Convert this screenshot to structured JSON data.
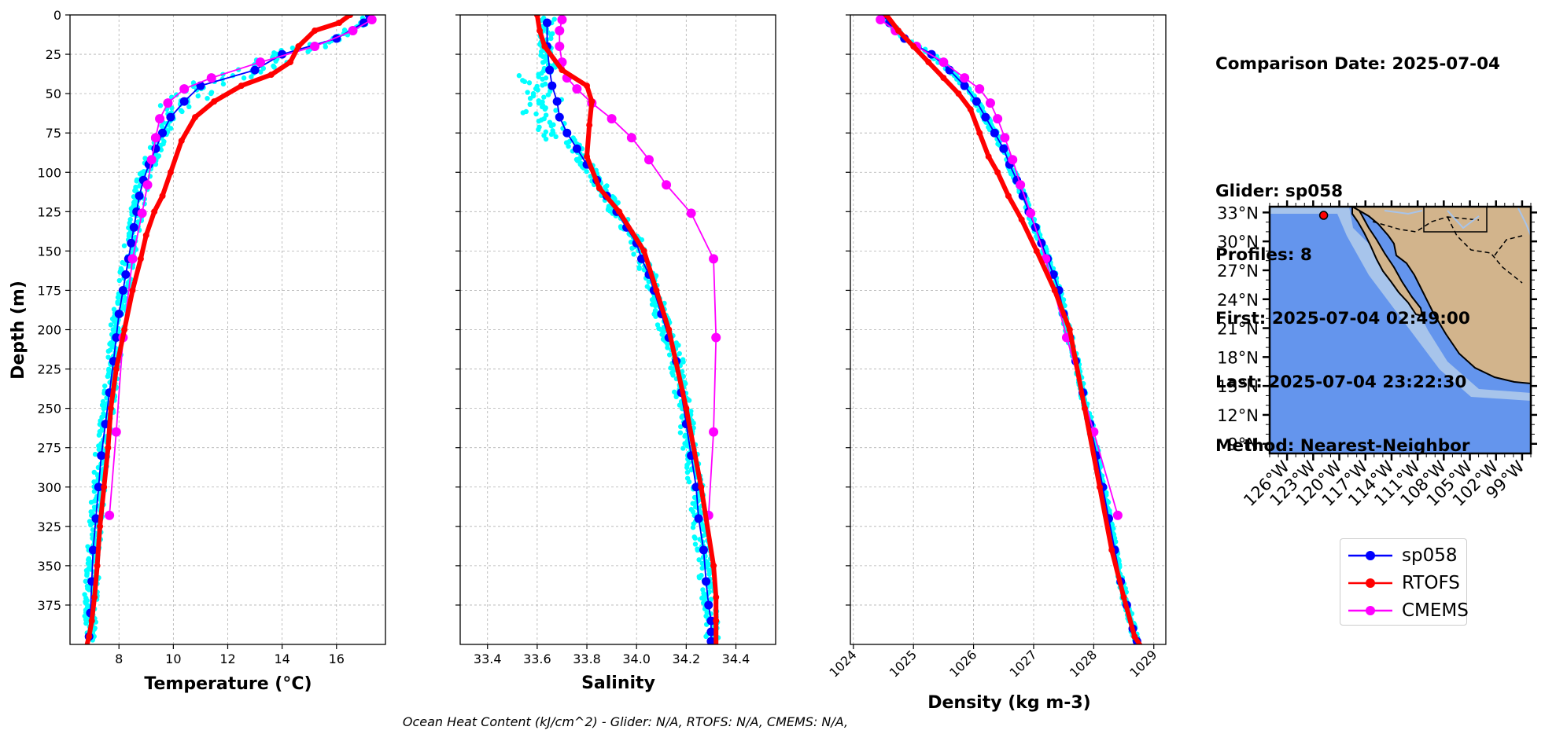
{
  "footer_text": "Ocean Heat Content (kJ/cm^2) - Glider: N/A,  RTOFS: N/A,  CMEMS: N/A,",
  "info": {
    "comparison_date": "Comparison Date: 2025-07-04",
    "glider": "Glider: sp058",
    "profiles": "Profiles: 8",
    "first": "First: 2025-07-04 02:49:00",
    "last": "Last: 2025-07-04 23:22:30",
    "method": "Method: Nearest-Neighbor"
  },
  "legend": [
    {
      "label": "sp058",
      "color": "#0000ff"
    },
    {
      "label": "RTOFS",
      "color": "#ff0000"
    },
    {
      "label": "CMEMS",
      "color": "#ff00ff"
    }
  ],
  "colors": {
    "scatter": "#00ffff",
    "glider": "#0000ff",
    "rtofs": "#ff0000",
    "cmems": "#ff00ff",
    "ocean": "#6495ed",
    "shelf": "#a7c4eb",
    "land": "#d2b48c"
  },
  "chart_data": [
    {
      "type": "line",
      "xlabel": "Temperature (°C)",
      "ylabel": "Depth (m)",
      "xlim": [
        6.2,
        17.8
      ],
      "ylim": [
        400,
        0
      ],
      "xticks": [
        8,
        10,
        12,
        14,
        16
      ],
      "yticks": [
        0,
        25,
        50,
        75,
        100,
        125,
        150,
        175,
        200,
        225,
        250,
        275,
        300,
        325,
        350,
        375
      ],
      "grid": true,
      "series": [
        {
          "name": "sp058",
          "x": [
            17.2,
            17.0,
            16.0,
            14.0,
            13.0,
            11.0,
            10.4,
            9.9,
            9.6,
            9.35,
            9.1,
            8.9,
            8.75,
            8.65,
            8.55,
            8.45,
            8.35,
            8.25,
            8.15,
            8.0,
            7.9,
            7.8,
            7.65,
            7.5,
            7.35,
            7.25,
            7.15,
            7.05,
            7.0,
            6.95,
            6.9
          ],
          "y": [
            0,
            5,
            15,
            25,
            35,
            45,
            55,
            65,
            75,
            85,
            95,
            105,
            115,
            125,
            135,
            145,
            155,
            165,
            175,
            190,
            205,
            220,
            240,
            260,
            280,
            300,
            320,
            340,
            360,
            380,
            395
          ]
        },
        {
          "name": "RTOFS",
          "x": [
            16.5,
            16.1,
            15.2,
            14.6,
            14.3,
            13.6,
            12.5,
            11.5,
            10.8,
            10.3,
            9.9,
            9.6,
            9.3,
            9.0,
            8.8,
            8.5,
            8.2,
            7.9,
            7.7,
            7.6,
            7.45,
            7.3,
            7.2,
            7.1,
            7.0,
            6.9,
            6.8
          ],
          "y": [
            0,
            5,
            10,
            20,
            30,
            38,
            45,
            55,
            65,
            80,
            100,
            115,
            125,
            140,
            155,
            175,
            200,
            225,
            250,
            275,
            300,
            325,
            350,
            370,
            385,
            395,
            402
          ]
        },
        {
          "name": "CMEMS",
          "x": [
            17.3,
            16.6,
            15.2,
            13.2,
            11.4,
            10.4,
            9.8,
            9.5,
            9.35,
            9.2,
            9.05,
            8.85,
            8.5,
            8.15,
            7.9,
            7.65
          ],
          "y": [
            3,
            10,
            20,
            30,
            40,
            47,
            56,
            66,
            78,
            92,
            108,
            126,
            155,
            205,
            265,
            318
          ]
        }
      ]
    },
    {
      "type": "line",
      "xlabel": "Salinity",
      "xlim": [
        33.29,
        34.56
      ],
      "ylim": [
        400,
        0
      ],
      "xticks": [
        33.4,
        33.6,
        33.8,
        34.0,
        34.2,
        34.4
      ],
      "grid": true,
      "series": [
        {
          "name": "sp058",
          "x": [
            33.64,
            33.64,
            33.65,
            33.66,
            33.68,
            33.69,
            33.72,
            33.76,
            33.8,
            33.84,
            33.88,
            33.92,
            33.96,
            34.0,
            34.02,
            34.05,
            34.07,
            34.1,
            34.13,
            34.16,
            34.18,
            34.2,
            34.22,
            34.24,
            34.25,
            34.27,
            34.28,
            34.29,
            34.3,
            34.3,
            34.3
          ],
          "y": [
            5,
            20,
            35,
            45,
            55,
            65,
            75,
            85,
            95,
            105,
            115,
            125,
            135,
            145,
            155,
            165,
            175,
            190,
            205,
            220,
            240,
            260,
            280,
            300,
            320,
            340,
            360,
            375,
            385,
            392,
            398
          ]
        },
        {
          "name": "RTOFS",
          "x": [
            33.6,
            33.61,
            33.63,
            33.7,
            33.8,
            33.82,
            33.81,
            33.8,
            33.85,
            33.93,
            34.03,
            34.08,
            34.13,
            34.2,
            34.26,
            34.31,
            34.32,
            34.32,
            34.32
          ],
          "y": [
            0,
            10,
            20,
            35,
            45,
            55,
            70,
            90,
            110,
            125,
            150,
            175,
            200,
            250,
            300,
            350,
            370,
            385,
            402
          ]
        },
        {
          "name": "CMEMS",
          "x": [
            33.7,
            33.69,
            33.69,
            33.7,
            33.72,
            33.76,
            33.82,
            33.9,
            33.98,
            34.05,
            34.12,
            34.22,
            34.31,
            34.32,
            34.31,
            34.29
          ],
          "y": [
            3,
            10,
            20,
            30,
            40,
            47,
            56,
            66,
            78,
            92,
            108,
            126,
            155,
            205,
            265,
            318
          ]
        }
      ]
    },
    {
      "type": "line",
      "xlabel": "Density (kg m-3)",
      "xlim": [
        1023.95,
        1029.2
      ],
      "ylim": [
        400,
        0
      ],
      "xticks": [
        1024,
        1025,
        1026,
        1027,
        1028,
        1029
      ],
      "grid": true,
      "series": [
        {
          "name": "sp058",
          "x": [
            1024.5,
            1024.6,
            1024.85,
            1025.3,
            1025.6,
            1025.85,
            1026.05,
            1026.2,
            1026.35,
            1026.5,
            1026.6,
            1026.72,
            1026.82,
            1026.92,
            1027.03,
            1027.13,
            1027.23,
            1027.33,
            1027.42,
            1027.5,
            1027.6,
            1027.7,
            1027.82,
            1027.94,
            1028.05,
            1028.15,
            1028.25,
            1028.35,
            1028.45,
            1028.55,
            1028.65,
            1028.72
          ],
          "y": [
            0,
            5,
            15,
            25,
            35,
            45,
            55,
            65,
            75,
            85,
            95,
            105,
            115,
            125,
            135,
            145,
            155,
            165,
            175,
            190,
            205,
            220,
            240,
            260,
            280,
            300,
            320,
            340,
            360,
            375,
            390,
            398
          ]
        },
        {
          "name": "RTOFS",
          "x": [
            1024.55,
            1024.75,
            1025.0,
            1025.25,
            1025.5,
            1025.75,
            1025.95,
            1026.1,
            1026.25,
            1026.4,
            1026.58,
            1026.8,
            1027.05,
            1027.35,
            1027.6,
            1027.85,
            1028.1,
            1028.3,
            1028.5,
            1028.68,
            1028.8
          ],
          "y": [
            0,
            10,
            20,
            30,
            40,
            50,
            60,
            75,
            90,
            100,
            115,
            130,
            150,
            175,
            200,
            250,
            300,
            340,
            370,
            395,
            402
          ]
        },
        {
          "name": "CMEMS",
          "x": [
            1024.45,
            1024.7,
            1025.05,
            1025.5,
            1025.85,
            1026.1,
            1026.28,
            1026.4,
            1026.52,
            1026.65,
            1026.78,
            1026.95,
            1027.2,
            1027.55,
            1028.0,
            1028.4
          ],
          "y": [
            3,
            10,
            20,
            30,
            40,
            47,
            56,
            66,
            78,
            92,
            108,
            126,
            155,
            205,
            265,
            318
          ]
        }
      ]
    }
  ],
  "map": {
    "lon_range": [
      -128,
      -98
    ],
    "lat_range": [
      8,
      33.6
    ],
    "lon_ticks": [
      "126°W",
      "123°W",
      "120°W",
      "117°W",
      "114°W",
      "111°W",
      "108°W",
      "105°W",
      "102°W",
      "99°W"
    ],
    "lat_ticks": [
      "33°N",
      "30°N",
      "27°N",
      "24°N",
      "21°N",
      "18°N",
      "15°N",
      "12°N",
      "9°N"
    ],
    "glider_location": {
      "lon": -121.8,
      "lat": 32.7
    }
  }
}
